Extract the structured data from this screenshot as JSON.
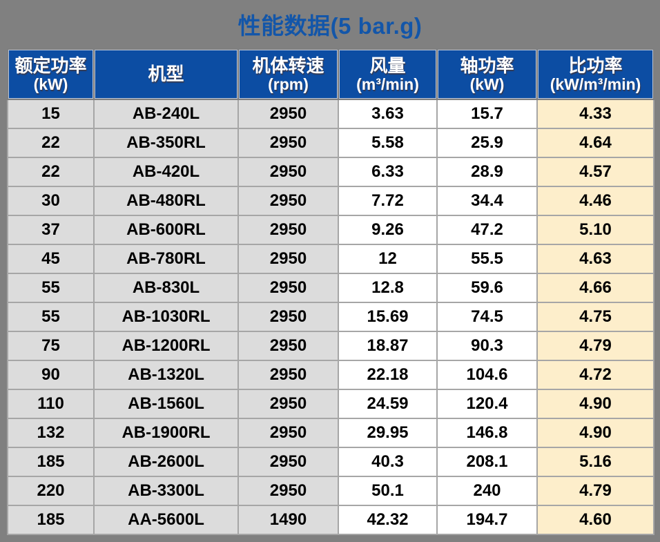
{
  "title": "性能数据(5 bar.g)",
  "colors": {
    "page_background": "#808080",
    "title_text": "#1356a9",
    "header_background": "#0c4da3",
    "header_text": "#ffffff",
    "gray_column_background": "#dcdcdc",
    "white_column_background": "#ffffff",
    "yellow_column_background": "#fdeecb",
    "grid_line": "#a6a6a6",
    "cell_text": "#000000"
  },
  "table": {
    "columns": [
      {
        "key": "rated-power",
        "label": "额定功率",
        "unit": "(kW)",
        "bg": "#dcdcdc"
      },
      {
        "key": "model",
        "label": "机型",
        "unit": "",
        "bg": "#dcdcdc"
      },
      {
        "key": "speed",
        "label": "机体转速",
        "unit": "(rpm)",
        "bg": "#dcdcdc"
      },
      {
        "key": "air-flow",
        "label": "风量",
        "unit": "(m³/min)",
        "bg": "#ffffff"
      },
      {
        "key": "shaft-power",
        "label": "轴功率",
        "unit": "(kW)",
        "bg": "#ffffff"
      },
      {
        "key": "specific-power",
        "label": "比功率",
        "unit": "(kW/m³/min)",
        "bg": "#fdeecb"
      }
    ],
    "rows": [
      [
        "15",
        "AB-240L",
        "2950",
        "3.63",
        "15.7",
        "4.33"
      ],
      [
        "22",
        "AB-350RL",
        "2950",
        "5.58",
        "25.9",
        "4.64"
      ],
      [
        "22",
        "AB-420L",
        "2950",
        "6.33",
        "28.9",
        "4.57"
      ],
      [
        "30",
        "AB-480RL",
        "2950",
        "7.72",
        "34.4",
        "4.46"
      ],
      [
        "37",
        "AB-600RL",
        "2950",
        "9.26",
        "47.2",
        "5.10"
      ],
      [
        "45",
        "AB-780RL",
        "2950",
        "12",
        "55.5",
        "4.63"
      ],
      [
        "55",
        "AB-830L",
        "2950",
        "12.8",
        "59.6",
        "4.66"
      ],
      [
        "55",
        "AB-1030RL",
        "2950",
        "15.69",
        "74.5",
        "4.75"
      ],
      [
        "75",
        "AB-1200RL",
        "2950",
        "18.87",
        "90.3",
        "4.79"
      ],
      [
        "90",
        "AB-1320L",
        "2950",
        "22.18",
        "104.6",
        "4.72"
      ],
      [
        "110",
        "AB-1560L",
        "2950",
        "24.59",
        "120.4",
        "4.90"
      ],
      [
        "132",
        "AB-1900RL",
        "2950",
        "29.95",
        "146.8",
        "4.90"
      ],
      [
        "185",
        "AB-2600L",
        "2950",
        "40.3",
        "208.1",
        "5.16"
      ],
      [
        "220",
        "AB-3300L",
        "2950",
        "50.1",
        "240",
        "4.79"
      ],
      [
        "185",
        "AA-5600L",
        "1490",
        "42.32",
        "194.7",
        "4.60"
      ]
    ]
  }
}
